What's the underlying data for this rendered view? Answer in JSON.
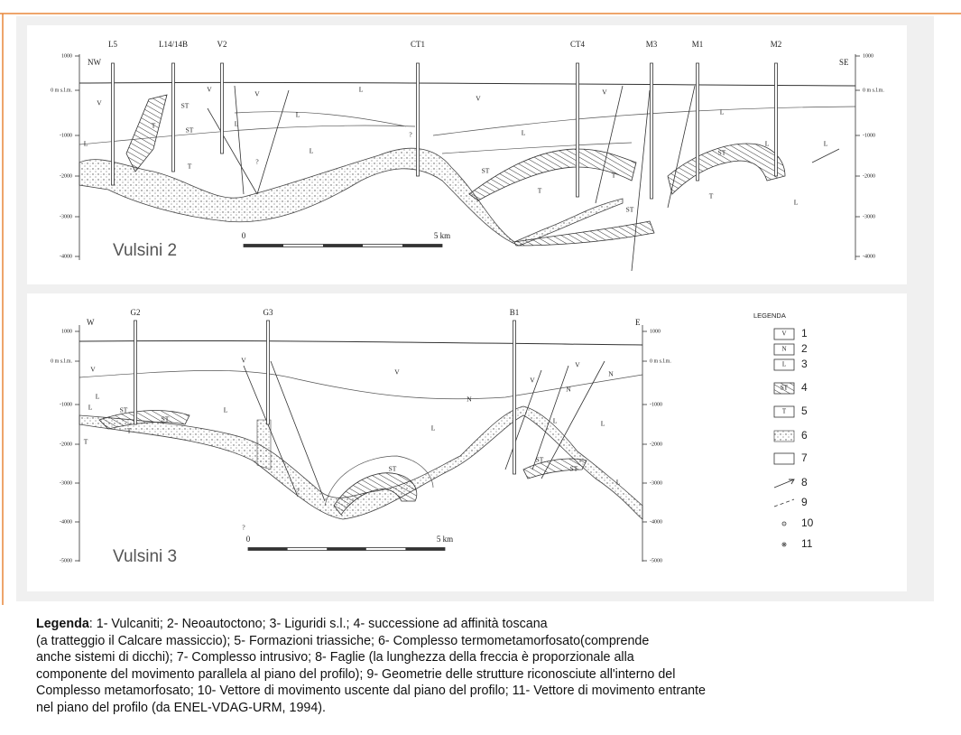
{
  "section1": {
    "title": "Vulsini 2",
    "left_end": "NW",
    "right_end": "SE",
    "wells": [
      "L5",
      "L14/14B",
      "V2",
      "CT1",
      "CT4",
      "M3",
      "M1",
      "M2"
    ],
    "left_axis": [
      "1000",
      "0 m s.l.m.",
      "-1000",
      "-2000",
      "-3000",
      "-4000"
    ],
    "right_axis": [
      "1000",
      "0 m s.l.m.",
      "-1000",
      "-2000",
      "-3000",
      "-4000"
    ],
    "scale": [
      "0",
      "5 km"
    ],
    "units": [
      "V",
      "V",
      "V",
      "L",
      "L",
      "L",
      "L",
      "T",
      "T",
      "ST",
      "ST",
      "L",
      "V",
      "L",
      "ST",
      "T",
      "T",
      "ST",
      "V",
      "L",
      "L",
      "ST",
      "T",
      "L",
      "L",
      "?",
      "?"
    ]
  },
  "section2": {
    "title": "Vulsini 3",
    "left_end": "W",
    "right_end": "E",
    "wells": [
      "G2",
      "G3",
      "B1"
    ],
    "left_axis": [
      "1000",
      "0 m s.l.m.",
      "-1000",
      "-2000",
      "-3000",
      "-4000",
      "-5000"
    ],
    "right_axis": [
      "1000",
      "0 m s.l.m.",
      "-1000",
      "-2000",
      "-3000",
      "-4000",
      "-5000"
    ],
    "scale": [
      "0",
      "5 km"
    ],
    "units": [
      "V",
      "V",
      "L",
      "L",
      "ST",
      "ST",
      "T",
      "T",
      "L",
      "V",
      "N",
      "L",
      "ST",
      "V",
      "V",
      "N",
      "N",
      "L",
      "L",
      "ST",
      "ST",
      "L",
      "?",
      "?"
    ]
  },
  "legend": {
    "title": "LEGENDA",
    "symbols": [
      "V",
      "N",
      "L",
      "ST",
      "T"
    ],
    "numbers": [
      "1",
      "2",
      "3",
      "4",
      "5",
      "6",
      "7",
      "8",
      "9",
      "10",
      "11"
    ]
  },
  "caption": {
    "bold": "Legenda",
    "lines": [
      ": 1- Vulcaniti; 2- Neoautoctono; 3- Liguridi s.l.; 4- successione ad affinità toscana",
      "(a tratteggio il Calcare massiccio); 5- Formazioni triassiche; 6- Complesso termometamorfosato(comprende",
      "anche sistemi di dicchi); 7- Complesso intrusivo; 8- Faglie (la lunghezza della freccia è proporzionale alla",
      "componente del movimento parallela al piano del profilo); 9- Geometrie delle strutture riconosciute all'interno del",
      "Complesso metamorfosato; 10- Vettore di movimento uscente dal piano del profilo; 11- Vettore di movimento entrante",
      "nel piano del profilo (da ENEL-VDAG-URM, 1994)."
    ]
  }
}
